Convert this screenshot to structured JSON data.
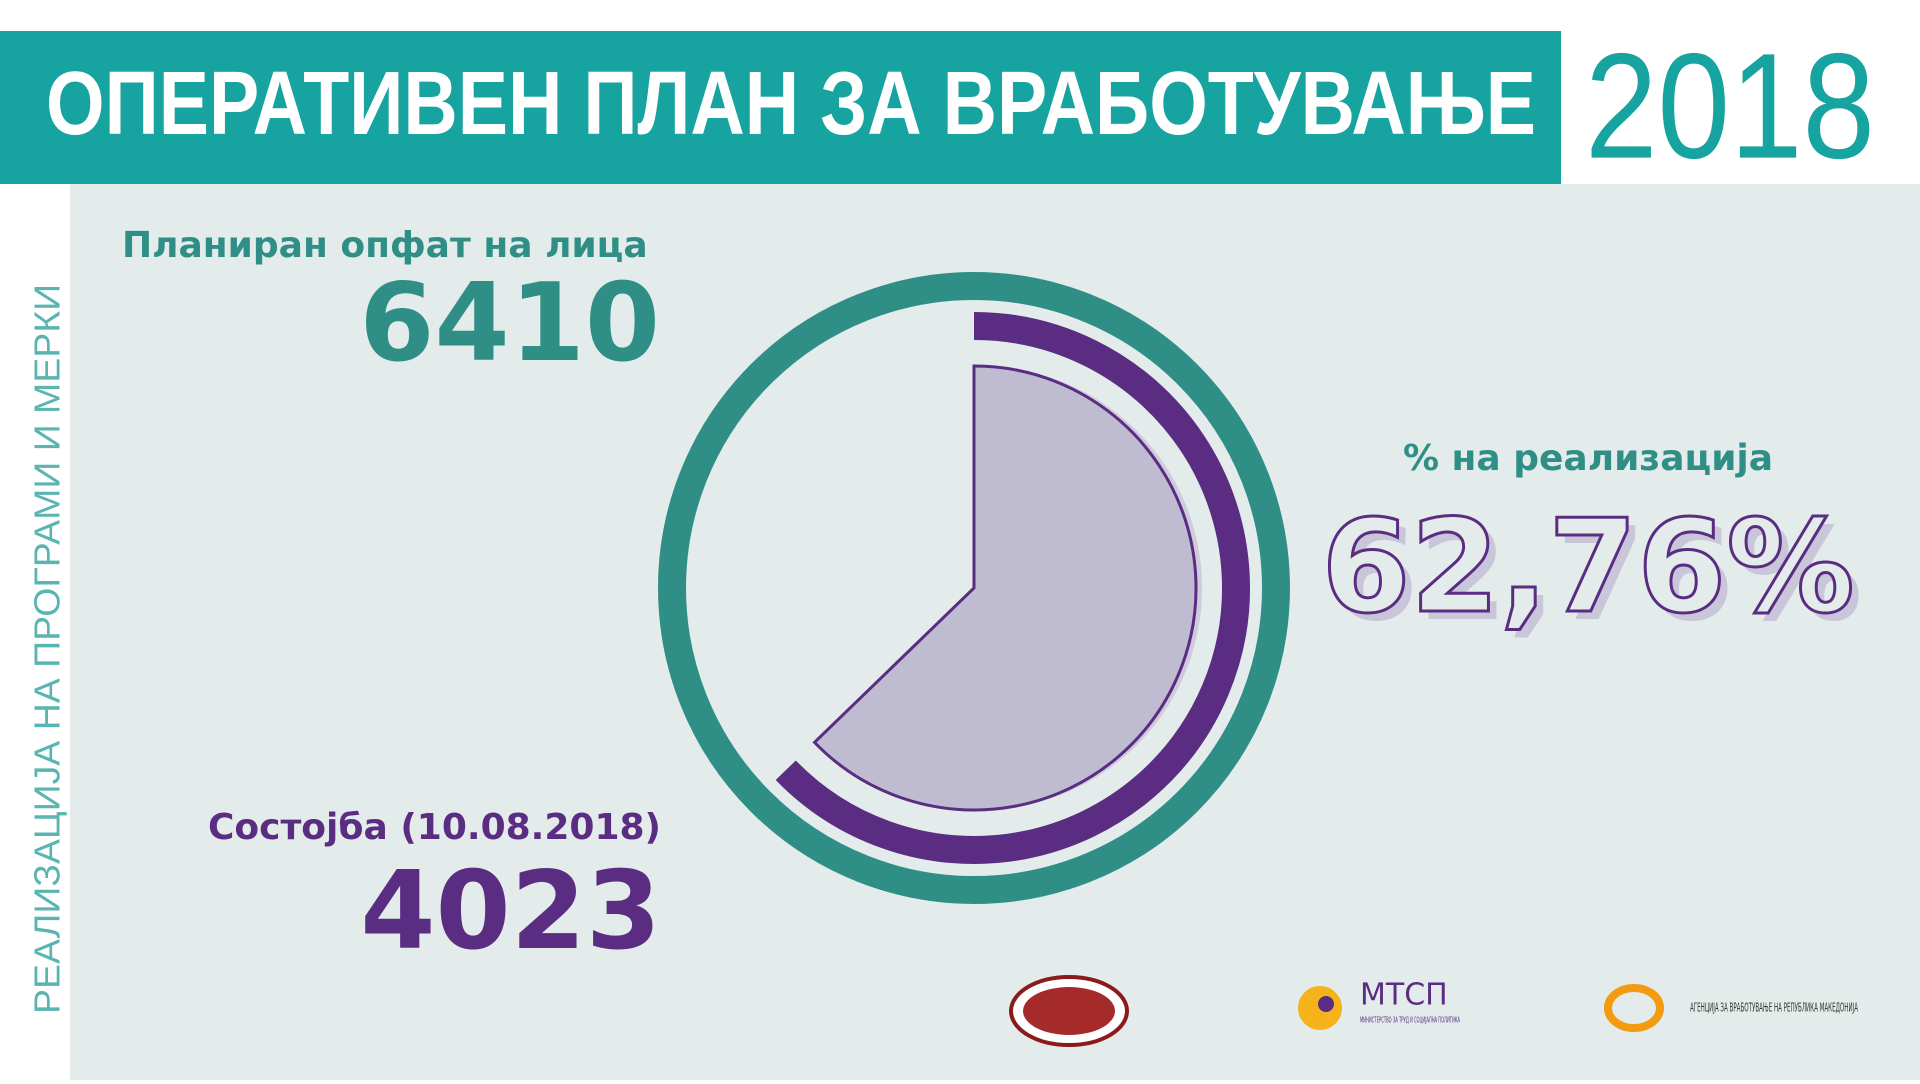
{
  "header": {
    "title": "ОПЕРАТИВЕН ПЛАН ЗА ВРАБОТУВАЊЕ",
    "year": "2018"
  },
  "side_text": "РЕАЛИЗАЦИЈА НА ПРОГРАМИ И МЕРКИ",
  "planned": {
    "label": "Планиран опфат на лица",
    "value": 6410
  },
  "status": {
    "label": "Состојба (10.08.2018)",
    "value": 4023
  },
  "rate": {
    "label": "% на реализација",
    "value": {
      "value": 62.76,
      "label": "62,76%"
    }
  },
  "logos": {
    "mtsp": "МТСП",
    "mtsp_sub": "МИНИСТЕРСТВО ЗА ТРУД И СОЦИЈАЛНА ПОЛИТИКА",
    "agency": "АГЕНЦИЈА ЗА ВРАБОТУВАЊЕ НА РЕПУБЛИКА МАКЕДОНИЈА"
  }
}
